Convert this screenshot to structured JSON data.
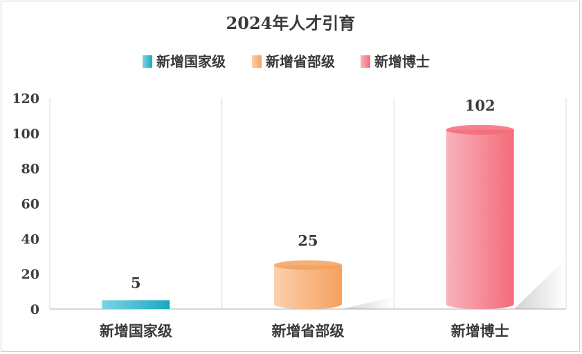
{
  "chart_data": {
    "type": "bar",
    "title": "2024年人才引育",
    "categories": [
      "新增国家级",
      "新增省部级",
      "新增博士"
    ],
    "series": [
      {
        "name": "新增国家级",
        "category": "新增国家级",
        "value": 5,
        "color_light": "#7fd3e0",
        "color_dark": "#1aa8c2"
      },
      {
        "name": "新增省部级",
        "category": "新增省部级",
        "value": 25,
        "color_light": "#fbd0ad",
        "color_dark": "#f5a15e"
      },
      {
        "name": "新增博士",
        "category": "新增博士",
        "value": 102,
        "color_light": "#f9b3bb",
        "color_dark": "#f46b79"
      }
    ],
    "y_ticks": [
      0,
      20,
      40,
      60,
      80,
      100,
      120
    ],
    "ylim": [
      0,
      120
    ],
    "grid": "vertical category separators",
    "legend_position": "top-center",
    "bar_style": "cylinder"
  }
}
